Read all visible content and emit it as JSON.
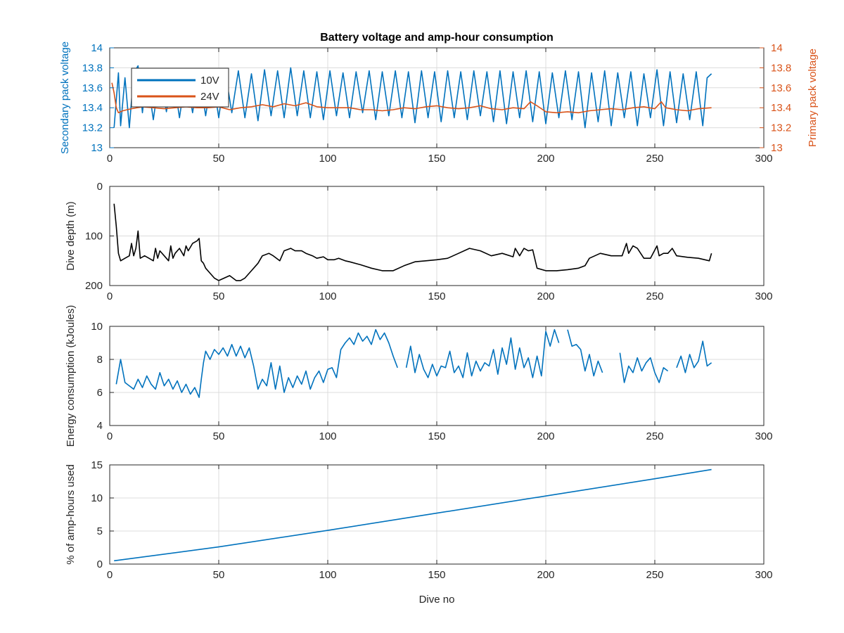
{
  "figure": {
    "title": "Battery voltage and amp-hour consumption",
    "colors": {
      "v10": "#0072BD",
      "v24": "#D95319",
      "depth": "#000000",
      "energy": "#0072BD",
      "amph": "#0072BD",
      "axis": "#262626",
      "grid": "#dcdcdc"
    }
  },
  "chart_data": [
    {
      "type": "line",
      "title": "Battery voltage and amp-hour consumption",
      "xlabel": "",
      "ylabel": "Secondary pack voltage",
      "ylabel_right": "Primary pack voltage",
      "xlim": [
        0,
        300
      ],
      "ylim": [
        13,
        14
      ],
      "ylim_right": [
        13,
        14
      ],
      "xticks": [
        0,
        50,
        100,
        150,
        200,
        250,
        300
      ],
      "yticks": [
        13,
        13.2,
        13.4,
        13.6,
        13.8,
        14
      ],
      "yticks_right": [
        13,
        13.2,
        13.4,
        13.6,
        13.8,
        14
      ],
      "grid": true,
      "legend": "top-left",
      "series": [
        {
          "name": "10V",
          "axis": "left",
          "note": "rapidly switching between ~13.3 and ~13.77",
          "x": [
            2,
            4,
            5,
            7,
            9,
            11,
            13,
            15,
            17,
            20,
            23,
            26,
            29,
            32,
            35,
            38,
            41,
            44,
            47,
            50,
            53,
            56,
            59,
            62,
            65,
            68,
            71,
            74,
            77,
            80,
            83,
            86,
            89,
            92,
            95,
            98,
            101,
            104,
            107,
            110,
            113,
            116,
            119,
            122,
            125,
            128,
            131,
            134,
            137,
            140,
            143,
            146,
            149,
            152,
            155,
            158,
            161,
            164,
            167,
            170,
            173,
            176,
            179,
            182,
            185,
            188,
            191,
            194,
            197,
            200,
            203,
            206,
            209,
            212,
            215,
            218,
            221,
            224,
            227,
            230,
            233,
            236,
            239,
            242,
            245,
            248,
            251,
            254,
            257,
            260,
            263,
            266,
            269,
            272,
            274,
            276
          ],
          "y": [
            13.2,
            13.75,
            13.22,
            13.7,
            13.2,
            13.75,
            13.82,
            13.35,
            13.74,
            13.28,
            13.75,
            13.36,
            13.74,
            13.3,
            13.75,
            13.35,
            13.76,
            13.32,
            13.74,
            13.3,
            13.76,
            13.35,
            13.77,
            13.3,
            13.74,
            13.27,
            13.78,
            13.32,
            13.77,
            13.3,
            13.8,
            13.32,
            13.77,
            13.3,
            13.76,
            13.28,
            13.77,
            13.32,
            13.75,
            13.3,
            13.76,
            13.35,
            13.77,
            13.28,
            13.76,
            13.32,
            13.77,
            13.3,
            13.76,
            13.25,
            13.77,
            13.3,
            13.76,
            13.26,
            13.77,
            13.3,
            13.76,
            13.28,
            13.77,
            13.32,
            13.76,
            13.26,
            13.77,
            13.24,
            13.76,
            13.3,
            13.77,
            13.26,
            13.76,
            13.24,
            13.75,
            13.3,
            13.77,
            13.28,
            13.76,
            13.2,
            13.75,
            13.26,
            13.77,
            13.22,
            13.75,
            13.3,
            13.76,
            13.22,
            13.74,
            13.3,
            13.78,
            13.22,
            13.76,
            13.25,
            13.74,
            13.28,
            13.76,
            13.22,
            13.7,
            13.74
          ]
        },
        {
          "name": "24V",
          "axis": "right",
          "x": [
            1,
            2,
            3,
            4,
            6,
            8,
            10,
            15,
            20,
            25,
            30,
            35,
            40,
            45,
            50,
            55,
            60,
            65,
            70,
            75,
            80,
            85,
            90,
            95,
            100,
            105,
            110,
            115,
            120,
            125,
            130,
            135,
            140,
            145,
            150,
            155,
            160,
            165,
            170,
            175,
            180,
            185,
            190,
            193,
            196,
            200,
            205,
            210,
            215,
            220,
            225,
            230,
            235,
            240,
            245,
            250,
            253,
            255,
            260,
            265,
            270,
            276
          ],
          "y": [
            13.65,
            13.55,
            13.4,
            13.35,
            13.37,
            13.38,
            13.39,
            13.41,
            13.4,
            13.39,
            13.4,
            13.41,
            13.4,
            13.4,
            13.41,
            13.38,
            13.4,
            13.41,
            13.43,
            13.41,
            13.44,
            13.42,
            13.45,
            13.41,
            13.4,
            13.4,
            13.4,
            13.38,
            13.38,
            13.37,
            13.38,
            13.4,
            13.39,
            13.41,
            13.42,
            13.4,
            13.39,
            13.4,
            13.42,
            13.39,
            13.38,
            13.4,
            13.39,
            13.46,
            13.42,
            13.36,
            13.35,
            13.36,
            13.35,
            13.37,
            13.38,
            13.39,
            13.38,
            13.4,
            13.41,
            13.39,
            13.46,
            13.4,
            13.38,
            13.37,
            13.39,
            13.4
          ]
        }
      ]
    },
    {
      "type": "line",
      "xlabel": "",
      "ylabel": "Dive depth (m)",
      "xlim": [
        0,
        300
      ],
      "ylim": [
        0,
        200
      ],
      "y_reversed": true,
      "xticks": [
        0,
        50,
        100,
        150,
        200,
        250,
        300
      ],
      "yticks": [
        0,
        100,
        200
      ],
      "grid": true,
      "series": [
        {
          "x": [
            2,
            3,
            4,
            5,
            7,
            9,
            10,
            11,
            12,
            13,
            14,
            16,
            18,
            20,
            21,
            22,
            23,
            25,
            27,
            28,
            29,
            30,
            32,
            34,
            35,
            36,
            38,
            40,
            41,
            42,
            43,
            44,
            46,
            48,
            50,
            55,
            58,
            60,
            62,
            65,
            68,
            70,
            73,
            75,
            78,
            80,
            83,
            85,
            88,
            90,
            93,
            95,
            98,
            100,
            103,
            105,
            108,
            110,
            115,
            120,
            125,
            130,
            135,
            140,
            145,
            150,
            155,
            160,
            165,
            170,
            175,
            180,
            185,
            186,
            188,
            190,
            192,
            194,
            196,
            200,
            205,
            210,
            215,
            218,
            220,
            225,
            230,
            235,
            237,
            238,
            240,
            242,
            245,
            248,
            251,
            252,
            254,
            256,
            258,
            260,
            265,
            270,
            275,
            276
          ],
          "y": [
            35,
            80,
            135,
            150,
            145,
            140,
            115,
            140,
            125,
            90,
            145,
            140,
            145,
            150,
            125,
            145,
            130,
            140,
            150,
            120,
            145,
            135,
            125,
            140,
            120,
            130,
            115,
            110,
            105,
            150,
            155,
            165,
            175,
            185,
            190,
            180,
            190,
            190,
            185,
            170,
            155,
            140,
            135,
            140,
            150,
            130,
            125,
            130,
            130,
            135,
            140,
            145,
            142,
            148,
            148,
            145,
            150,
            152,
            158,
            165,
            170,
            170,
            160,
            152,
            150,
            148,
            145,
            135,
            125,
            130,
            140,
            135,
            142,
            125,
            140,
            125,
            130,
            128,
            165,
            170,
            170,
            168,
            165,
            160,
            145,
            135,
            140,
            140,
            115,
            135,
            120,
            125,
            145,
            145,
            120,
            140,
            135,
            135,
            125,
            140,
            143,
            145,
            150,
            135
          ]
        }
      ]
    },
    {
      "type": "line",
      "xlabel": "",
      "ylabel": "Energy consumption (kJoules)",
      "xlim": [
        0,
        300
      ],
      "ylim": [
        4,
        10
      ],
      "xticks": [
        0,
        50,
        100,
        150,
        200,
        250,
        300
      ],
      "yticks": [
        4,
        6,
        8,
        10
      ],
      "grid": true,
      "series": [
        {
          "note": "null values are gaps in the line",
          "x": [
            3,
            5,
            7,
            9,
            11,
            13,
            15,
            17,
            19,
            21,
            23,
            25,
            27,
            29,
            31,
            33,
            35,
            37,
            39,
            41,
            42,
            43,
            44,
            46,
            48,
            50,
            52,
            54,
            56,
            58,
            60,
            62,
            64,
            66,
            68,
            70,
            72,
            74,
            76,
            78,
            80,
            82,
            84,
            86,
            88,
            90,
            92,
            94,
            96,
            98,
            100,
            102,
            104,
            106,
            108,
            110,
            112,
            114,
            116,
            118,
            120,
            122,
            124,
            126,
            128,
            130,
            132,
            134,
            136,
            138,
            140,
            142,
            144,
            146,
            148,
            150,
            152,
            154,
            156,
            158,
            160,
            162,
            164,
            166,
            168,
            170,
            172,
            174,
            176,
            178,
            180,
            182,
            184,
            186,
            188,
            190,
            192,
            194,
            196,
            198,
            200,
            202,
            204,
            206,
            208,
            210,
            212,
            214,
            216,
            218,
            220,
            222,
            224,
            226,
            228,
            230,
            232,
            234,
            236,
            238,
            240,
            242,
            244,
            246,
            248,
            250,
            252,
            254,
            256,
            258,
            260,
            262,
            264,
            266,
            268,
            270,
            272,
            274,
            276
          ],
          "y": [
            6.5,
            8,
            6.6,
            6.4,
            6.2,
            6.8,
            6.3,
            7,
            6.5,
            6.2,
            7.2,
            6.4,
            6.8,
            6.2,
            6.7,
            6,
            6.5,
            5.9,
            6.3,
            5.7,
            6.8,
            7.8,
            8.5,
            8,
            8.6,
            8.3,
            8.7,
            8.2,
            8.9,
            8.2,
            8.8,
            8.1,
            8.7,
            7.6,
            6.2,
            6.8,
            6.4,
            7.8,
            6.2,
            7.6,
            6,
            6.9,
            6.3,
            7,
            6.5,
            7.3,
            6.2,
            6.9,
            7.3,
            6.6,
            7.4,
            7.5,
            6.9,
            8.6,
            9,
            9.3,
            8.9,
            9.6,
            9.1,
            9.4,
            8.9,
            9.8,
            9.2,
            9.6,
            9,
            8.2,
            7.5,
            null,
            7.5,
            8.8,
            7.2,
            8.3,
            7.4,
            6.9,
            7.7,
            7,
            7.6,
            7.5,
            8.5,
            7.2,
            7.6,
            6.9,
            8.4,
            7,
            7.9,
            7.3,
            7.8,
            7.6,
            8.6,
            7.1,
            8.7,
            7.7,
            9.3,
            7.4,
            8.7,
            7.5,
            8.1,
            6.9,
            8.2,
            7,
            9.7,
            8.8,
            9.8,
            9,
            null,
            9.8,
            8.8,
            8.9,
            8.6,
            7.3,
            8.3,
            7,
            7.9,
            7.2,
            null,
            7.4,
            null,
            8.4,
            6.6,
            7.6,
            7.2,
            8.1,
            7.3,
            7.8,
            8.1,
            7.2,
            6.6,
            7.5,
            7.3,
            null,
            7.5,
            8.2,
            7.2,
            8.3,
            7.5,
            7.9,
            9.1,
            7.6,
            7.8
          ]
        }
      ]
    },
    {
      "type": "line",
      "xlabel": "Dive no",
      "ylabel": "% of amp-hours used",
      "xlim": [
        0,
        300
      ],
      "ylim": [
        0,
        15
      ],
      "xticks": [
        0,
        50,
        100,
        150,
        200,
        250,
        300
      ],
      "yticks": [
        0,
        5,
        10,
        15
      ],
      "grid": true,
      "series": [
        {
          "x": [
            2,
            50,
            100,
            150,
            200,
            250,
            276
          ],
          "y": [
            0.5,
            2.6,
            5.1,
            7.7,
            10.3,
            12.9,
            14.3
          ]
        }
      ]
    }
  ]
}
